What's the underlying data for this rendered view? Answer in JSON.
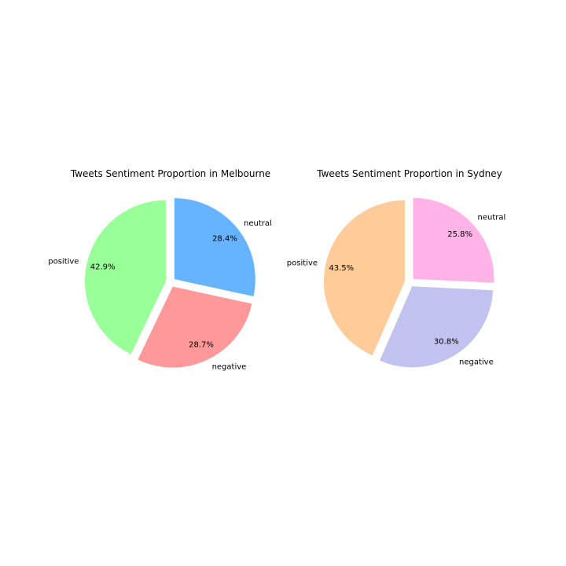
{
  "chart_data": [
    {
      "type": "pie",
      "title": "Tweets Sentiment Proportion in Melbourne",
      "slices": [
        {
          "label": "positive",
          "value": 42.9,
          "pct_label": "42.9%",
          "color": "#99ff99",
          "exploded": true
        },
        {
          "label": "negative",
          "value": 28.7,
          "pct_label": "28.7%",
          "color": "#ff9999",
          "exploded": true
        },
        {
          "label": "neutral",
          "value": 28.4,
          "pct_label": "28.4%",
          "color": "#66b3ff",
          "exploded": true
        }
      ]
    },
    {
      "type": "pie",
      "title": "Tweets Sentiment Proportion in Sydney",
      "slices": [
        {
          "label": "positive",
          "value": 43.5,
          "pct_label": "43.5%",
          "color": "#ffcc99",
          "exploded": true
        },
        {
          "label": "negative",
          "value": 30.8,
          "pct_label": "30.8%",
          "color": "#c2c2f0",
          "exploded": true
        },
        {
          "label": "neutral",
          "value": 25.8,
          "pct_label": "25.8%",
          "color": "#ffb3e6",
          "exploded": true
        }
      ]
    }
  ]
}
